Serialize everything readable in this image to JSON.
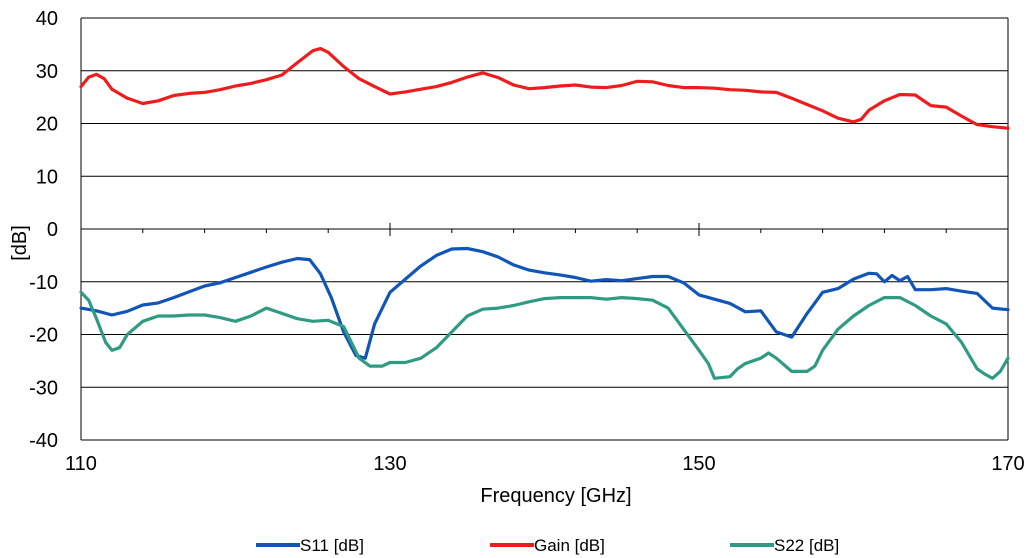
{
  "chart_data": {
    "type": "line",
    "title": "",
    "xlabel": "Frequency [GHz]",
    "ylabel": "[dB]",
    "xlim": [
      110,
      170
    ],
    "ylim": [
      -40,
      40
    ],
    "xticks": [
      110,
      130,
      150,
      170
    ],
    "yticks": [
      40,
      30,
      20,
      10,
      0,
      -10,
      -20,
      -30,
      -40
    ],
    "grid": "horizontal",
    "legend_position": "bottom",
    "series": [
      {
        "name": "S11 [dB]",
        "color": "#1155b8",
        "points": [
          [
            110,
            -15.0
          ],
          [
            111,
            -15.5
          ],
          [
            112,
            -16.3
          ],
          [
            113,
            -15.6
          ],
          [
            114,
            -14.4
          ],
          [
            115,
            -14.0
          ],
          [
            116,
            -13.0
          ],
          [
            117,
            -11.9
          ],
          [
            118,
            -10.8
          ],
          [
            119,
            -10.2
          ],
          [
            120,
            -9.2
          ],
          [
            121,
            -8.2
          ],
          [
            122,
            -7.2
          ],
          [
            123,
            -6.3
          ],
          [
            124,
            -5.6
          ],
          [
            124.8,
            -5.8
          ],
          [
            125.5,
            -8.5
          ],
          [
            126.2,
            -13.0
          ],
          [
            127,
            -19.5
          ],
          [
            127.8,
            -24.0
          ],
          [
            128.4,
            -24.5
          ],
          [
            129,
            -18.0
          ],
          [
            130,
            -12.0
          ],
          [
            131,
            -9.5
          ],
          [
            132,
            -7.0
          ],
          [
            133,
            -5.0
          ],
          [
            134,
            -3.8
          ],
          [
            135,
            -3.7
          ],
          [
            136,
            -4.3
          ],
          [
            137,
            -5.3
          ],
          [
            138,
            -6.8
          ],
          [
            139,
            -7.8
          ],
          [
            140,
            -8.3
          ],
          [
            141,
            -8.7
          ],
          [
            142,
            -9.2
          ],
          [
            143,
            -9.9
          ],
          [
            144,
            -9.6
          ],
          [
            145,
            -9.8
          ],
          [
            146,
            -9.4
          ],
          [
            147,
            -9.0
          ],
          [
            148,
            -9.0
          ],
          [
            149,
            -10.2
          ],
          [
            150,
            -12.5
          ],
          [
            151,
            -13.3
          ],
          [
            152,
            -14.1
          ],
          [
            153,
            -15.7
          ],
          [
            154,
            -15.5
          ],
          [
            155,
            -19.5
          ],
          [
            156,
            -20.5
          ],
          [
            157,
            -16.0
          ],
          [
            157.5,
            -14.0
          ],
          [
            158,
            -12.0
          ],
          [
            159,
            -11.3
          ],
          [
            160,
            -9.5
          ],
          [
            161,
            -8.4
          ],
          [
            161.5,
            -8.5
          ],
          [
            162,
            -10.0
          ],
          [
            162.5,
            -8.8
          ],
          [
            163,
            -9.8
          ],
          [
            163.5,
            -9.0
          ],
          [
            164,
            -11.5
          ],
          [
            165,
            -11.5
          ],
          [
            166,
            -11.3
          ],
          [
            167,
            -11.8
          ],
          [
            168,
            -12.2
          ],
          [
            169,
            -15.0
          ],
          [
            170,
            -15.3
          ]
        ]
      },
      {
        "name": "Gain [dB]",
        "color": "#ee1c1c",
        "points": [
          [
            110,
            27.0
          ],
          [
            110.5,
            28.8
          ],
          [
            111,
            29.3
          ],
          [
            111.5,
            28.5
          ],
          [
            112,
            26.5
          ],
          [
            113,
            24.8
          ],
          [
            114,
            23.8
          ],
          [
            115,
            24.3
          ],
          [
            116,
            25.3
          ],
          [
            117,
            25.7
          ],
          [
            118,
            25.9
          ],
          [
            119,
            26.4
          ],
          [
            120,
            27.1
          ],
          [
            121,
            27.6
          ],
          [
            122,
            28.3
          ],
          [
            123,
            29.2
          ],
          [
            124,
            31.5
          ],
          [
            125,
            33.8
          ],
          [
            125.5,
            34.2
          ],
          [
            126,
            33.5
          ],
          [
            127,
            30.8
          ],
          [
            128,
            28.5
          ],
          [
            129,
            27.0
          ],
          [
            130,
            25.6
          ],
          [
            131,
            26.0
          ],
          [
            132,
            26.5
          ],
          [
            133,
            27.0
          ],
          [
            134,
            27.8
          ],
          [
            135,
            28.8
          ],
          [
            136,
            29.6
          ],
          [
            137,
            28.7
          ],
          [
            138,
            27.3
          ],
          [
            139,
            26.6
          ],
          [
            140,
            26.8
          ],
          [
            141,
            27.1
          ],
          [
            142,
            27.3
          ],
          [
            143,
            26.9
          ],
          [
            144,
            26.8
          ],
          [
            145,
            27.2
          ],
          [
            146,
            28.0
          ],
          [
            147,
            27.9
          ],
          [
            148,
            27.2
          ],
          [
            149,
            26.8
          ],
          [
            150,
            26.8
          ],
          [
            151,
            26.7
          ],
          [
            152,
            26.4
          ],
          [
            153,
            26.3
          ],
          [
            154,
            26.0
          ],
          [
            155,
            25.9
          ],
          [
            156,
            24.8
          ],
          [
            157,
            23.6
          ],
          [
            158,
            22.4
          ],
          [
            159,
            21.0
          ],
          [
            160,
            20.3
          ],
          [
            160.5,
            20.8
          ],
          [
            161,
            22.5
          ],
          [
            162,
            24.3
          ],
          [
            163,
            25.5
          ],
          [
            164,
            25.4
          ],
          [
            165,
            23.4
          ],
          [
            166,
            23.1
          ],
          [
            167,
            21.4
          ],
          [
            168,
            19.8
          ],
          [
            169,
            19.4
          ],
          [
            170,
            19.1
          ]
        ]
      },
      {
        "name": "S22 [dB]",
        "color": "#2e9b82",
        "points": [
          [
            110,
            -12.0
          ],
          [
            110.5,
            -13.5
          ],
          [
            111,
            -17.0
          ],
          [
            111.6,
            -21.5
          ],
          [
            112,
            -23.0
          ],
          [
            112.5,
            -22.5
          ],
          [
            113,
            -20.0
          ],
          [
            114,
            -17.5
          ],
          [
            115,
            -16.5
          ],
          [
            116,
            -16.5
          ],
          [
            117,
            -16.3
          ],
          [
            118,
            -16.3
          ],
          [
            119,
            -16.8
          ],
          [
            120,
            -17.5
          ],
          [
            121,
            -16.5
          ],
          [
            122,
            -15.0
          ],
          [
            123,
            -16.0
          ],
          [
            124,
            -17.0
          ],
          [
            125,
            -17.5
          ],
          [
            126,
            -17.3
          ],
          [
            127,
            -18.5
          ],
          [
            127.5,
            -21.5
          ],
          [
            128,
            -24.5
          ],
          [
            128.7,
            -26.0
          ],
          [
            129.5,
            -26.0
          ],
          [
            130,
            -25.3
          ],
          [
            131,
            -25.3
          ],
          [
            132,
            -24.5
          ],
          [
            133,
            -22.5
          ],
          [
            134,
            -19.5
          ],
          [
            135,
            -16.5
          ],
          [
            136,
            -15.2
          ],
          [
            137,
            -15.0
          ],
          [
            138,
            -14.5
          ],
          [
            139,
            -13.8
          ],
          [
            140,
            -13.2
          ],
          [
            141,
            -13.0
          ],
          [
            142,
            -13.0
          ],
          [
            143,
            -13.0
          ],
          [
            144,
            -13.3
          ],
          [
            145,
            -13.0
          ],
          [
            146,
            -13.2
          ],
          [
            147,
            -13.5
          ],
          [
            148,
            -15.0
          ],
          [
            149,
            -19.0
          ],
          [
            150,
            -23.0
          ],
          [
            150.6,
            -25.5
          ],
          [
            151,
            -28.3
          ],
          [
            152,
            -28.0
          ],
          [
            152.5,
            -26.5
          ],
          [
            153,
            -25.5
          ],
          [
            154,
            -24.5
          ],
          [
            154.5,
            -23.5
          ],
          [
            155,
            -24.5
          ],
          [
            156,
            -27.0
          ],
          [
            157,
            -27.0
          ],
          [
            157.5,
            -26.0
          ],
          [
            158,
            -23.0
          ],
          [
            159,
            -19.0
          ],
          [
            160,
            -16.5
          ],
          [
            161,
            -14.5
          ],
          [
            162,
            -13.0
          ],
          [
            163,
            -13.0
          ],
          [
            164,
            -14.5
          ],
          [
            165,
            -16.5
          ],
          [
            166,
            -18.0
          ],
          [
            167,
            -21.5
          ],
          [
            168,
            -26.5
          ],
          [
            168.5,
            -27.5
          ],
          [
            169,
            -28.3
          ],
          [
            169.5,
            -27.0
          ],
          [
            170,
            -24.5
          ]
        ]
      }
    ]
  }
}
